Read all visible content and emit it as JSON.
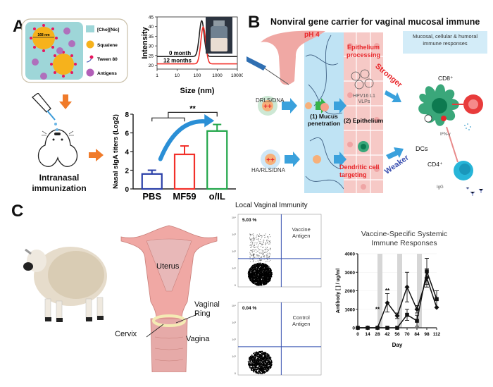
{
  "panels": {
    "A": {
      "letter": "A",
      "schematic": {
        "droplet_size_label": "168 nm",
        "legend": [
          {
            "label": "[Cho][Nic]",
            "color": "#9ed6d8",
            "shape": "square"
          },
          {
            "label": "Squalene",
            "color": "#f6b21c",
            "shape": "circle"
          },
          {
            "label": "Tween 80",
            "color": "#e8175d",
            "shape": "pin"
          },
          {
            "label": "Antigens",
            "color": "#b25fb8",
            "shape": "circle"
          }
        ]
      },
      "mouse_caption": [
        "Intranasal",
        "immunization"
      ],
      "arrow_color": "#f07b2a"
    },
    "B": {
      "letter": "B",
      "title": "Nonviral gene carrier for vaginal mucosal immune",
      "ph_label": "pH 4",
      "response_box": [
        "Mucosal, cellular & humoral",
        "immune responses"
      ],
      "carrier_top": "DRLS/DNA",
      "carrier_bottom": "HA/RLS/DNA",
      "step1": [
        "(1) Mucus",
        "penetration"
      ],
      "step2": "(2) Epithelium",
      "epithelium_processing": [
        "Epithelium",
        "processing"
      ],
      "vlp_label": [
        "HPV16 L1",
        "VLPs"
      ],
      "dc_targeting": [
        "Dendritic cell",
        "targeting"
      ],
      "stronger_label": "Stronger",
      "weaker_label": "Weaker",
      "dcs_label": "DCs",
      "cd8_label": "CD8⁺",
      "cd4_label": "CD4⁺",
      "ifn_label": "IFN-γ",
      "igg_label": "IgG",
      "colors": {
        "red": "#e8262a",
        "blue_text": "#3a4fb0",
        "mucus": "#bfe3f4",
        "epithelium": "#f6c9c6",
        "dc": "#3aa77a",
        "cd8": "#e83b3b",
        "cd4": "#27b5d8"
      }
    },
    "C": {
      "letter": "C",
      "anatomy_labels": {
        "uterus": "Uterus",
        "vaginal_ring": [
          "Vaginal",
          "Ring"
        ],
        "cervix": "Cervix",
        "vagina": "Vagina"
      },
      "flow_title": "Local Vaginal Immunity",
      "flow_plots": [
        {
          "percent": "5.03 %",
          "label": [
            "Vaccine",
            "Antigen"
          ]
        },
        {
          "percent": "0.04 %",
          "label": [
            "Control",
            "Antigen"
          ]
        }
      ],
      "flow_y_ticks": [
        "0",
        "10¹",
        "10²",
        "10³",
        "10⁴"
      ]
    }
  },
  "chart_data": [
    {
      "id": "dls",
      "type": "line",
      "title": "",
      "xlabel": "Size (nm)",
      "ylabel": "Intensity",
      "xscale": "log",
      "xlim": [
        1,
        10000
      ],
      "ylim": [
        18,
        45
      ],
      "x_ticks": [
        "1",
        "10",
        "100",
        "1000",
        "10000"
      ],
      "y_ticks": [
        "20",
        "25",
        "30",
        "35",
        "40",
        "45"
      ],
      "series": [
        {
          "name": "0 month",
          "color": "#222222",
          "baseline": 24.5,
          "peak_x": 168,
          "peak_y": 43
        },
        {
          "name": "12 months",
          "color": "#f2302a",
          "baseline": 20.7,
          "peak_x": 200,
          "peak_y": 39.8
        }
      ]
    },
    {
      "id": "siga",
      "type": "bar",
      "title": "",
      "xlabel": "",
      "ylabel": "Nasal sIgA titers (Log2)",
      "ylim": [
        0,
        8
      ],
      "y_ticks": [
        "0",
        "2",
        "4",
        "6",
        "8"
      ],
      "categories": [
        "PBS",
        "MF59",
        "o/IL"
      ],
      "values": [
        1.6,
        3.7,
        6.2
      ],
      "errors": [
        0.4,
        0.9,
        0.7
      ],
      "colors": [
        "#2a3fa8",
        "#f2302a",
        "#22a64a"
      ],
      "annotations": [
        "**"
      ]
    },
    {
      "id": "systemic",
      "type": "line",
      "title": "Vaccine-Specific Systemic Immune Responses",
      "title_lines": [
        "Vaccine-Specific Systemic",
        "Immune Responses"
      ],
      "xlabel": "Day",
      "ylabel": "Antibody [ ] / ug/ml",
      "xlim": [
        0,
        112
      ],
      "ylim": [
        0,
        4000
      ],
      "x_ticks": [
        "0",
        "14",
        "28",
        "42",
        "56",
        "70",
        "84",
        "98",
        "112"
      ],
      "y_ticks": [
        "0",
        "1000",
        "2000",
        "3000",
        "4000"
      ],
      "shaded_days": [
        28,
        56,
        84
      ],
      "x": [
        0,
        14,
        28,
        42,
        56,
        70,
        84,
        98,
        112
      ],
      "series": [
        {
          "name": "Group 1 (diamond)",
          "marker": "diamond",
          "values": [
            0,
            0,
            0,
            1350,
            650,
            2200,
            1000,
            2700,
            1100
          ],
          "errors": [
            0,
            0,
            0,
            500,
            150,
            800,
            200,
            500,
            0
          ]
        },
        {
          "name": "Group 2 (square)",
          "marker": "square",
          "values": [
            0,
            0,
            0,
            0,
            0,
            700,
            380,
            3050,
            1550
          ],
          "errors": [
            0,
            0,
            0,
            0,
            0,
            300,
            300,
            700,
            450
          ]
        }
      ],
      "significance": [
        {
          "day": 28,
          "label": "**"
        },
        {
          "day": 42,
          "label": "**"
        }
      ]
    }
  ]
}
